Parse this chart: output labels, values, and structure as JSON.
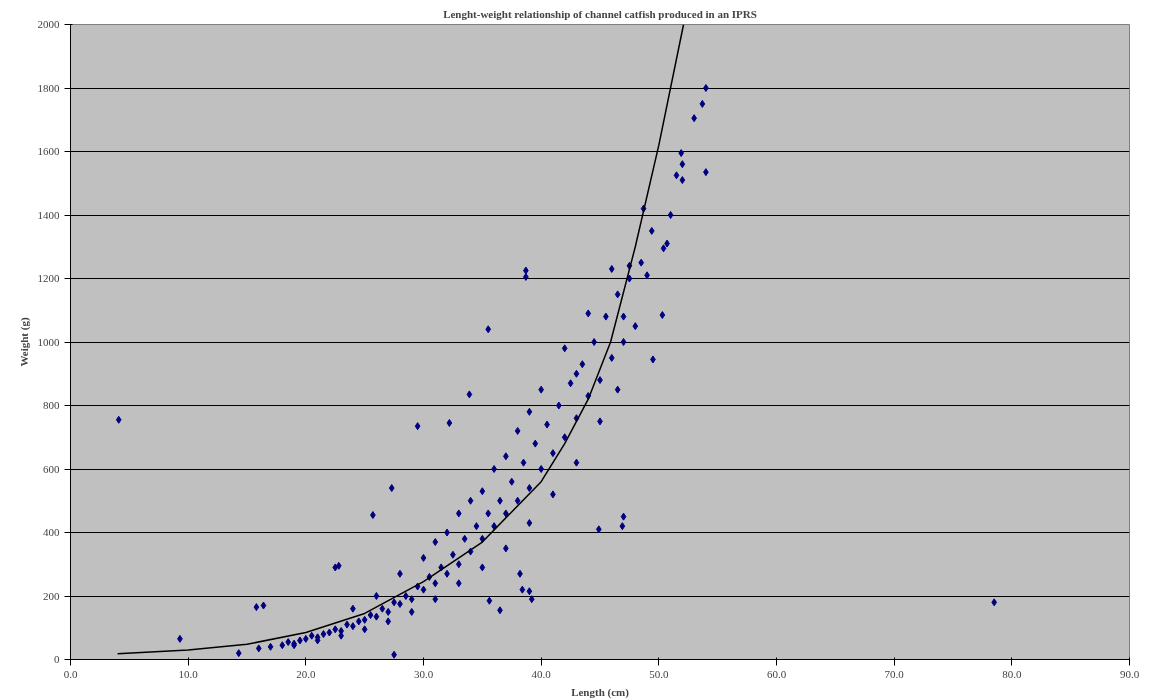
{
  "chart_data": {
    "type": "scatter",
    "title": "Lenght-weight relationship of channel catfish produced in an IPRS",
    "xlabel": "Length (cm)",
    "ylabel": "Weight (g)",
    "xlim": [
      0,
      90
    ],
    "ylim": [
      0,
      2000
    ],
    "xticks": [
      {
        "value": 0,
        "label": "0.0"
      },
      {
        "value": 10,
        "label": "10.0"
      },
      {
        "value": 20,
        "label": "20.0"
      },
      {
        "value": 30,
        "label": "30.0"
      },
      {
        "value": 40,
        "label": "40.0"
      },
      {
        "value": 50,
        "label": "50.0"
      },
      {
        "value": 60,
        "label": "60.0"
      },
      {
        "value": 70,
        "label": "70.0"
      },
      {
        "value": 80,
        "label": "80.0"
      },
      {
        "value": 90,
        "label": "90.0"
      }
    ],
    "yticks": [
      0,
      200,
      400,
      600,
      800,
      1000,
      1200,
      1400,
      1600,
      1800,
      2000
    ],
    "grid": "y",
    "marker": "diamond",
    "series": [
      {
        "color": "#000080",
        "x": [
          4.1,
          9.3,
          14.3,
          15.8,
          16.4,
          22.5,
          22.8,
          25.7,
          27.3,
          27.5,
          29.5,
          32.2,
          33.9,
          35.5,
          38.7,
          38.7,
          36.5,
          35.6,
          38.2,
          38.4,
          39.0,
          39.2,
          44.9,
          47.0,
          46.9,
          49.5,
          78.5,
          54,
          53.7,
          53,
          54,
          51.9,
          52,
          52,
          51.5,
          51,
          50.7,
          50.4,
          48.7,
          49.4,
          50.3,
          16,
          17,
          18,
          18.5,
          19,
          19.5,
          20,
          20.5,
          21,
          21.5,
          22,
          22.5,
          23,
          23.5,
          24,
          24.5,
          25,
          25.5,
          26,
          26.5,
          27,
          27.5,
          28,
          28.5,
          29,
          29.5,
          30,
          30.5,
          31,
          31.5,
          32,
          32.5,
          33,
          33.5,
          34,
          34.5,
          35,
          35.5,
          36,
          36.5,
          37,
          37.5,
          38,
          38.5,
          39,
          39.5,
          40,
          40.5,
          41,
          41.5,
          42,
          42.5,
          43,
          43.5,
          44,
          44.5,
          45,
          45.5,
          46,
          46.5,
          47,
          47.5,
          48,
          46.5,
          45,
          43,
          41,
          39,
          37,
          35,
          33,
          31,
          29,
          27,
          25,
          23,
          21,
          19,
          30,
          32,
          34,
          36,
          38,
          40,
          42,
          44,
          46,
          47.5,
          48.5,
          49,
          47,
          43,
          39,
          37,
          35,
          33,
          31,
          28,
          26,
          24
        ],
        "values": [
          755,
          65,
          20,
          165,
          170,
          290,
          295,
          455,
          540,
          15,
          735,
          745,
          835,
          1040,
          1225,
          1205,
          155,
          185,
          270,
          220,
          215,
          190,
          410,
          450,
          420,
          945,
          180,
          1800,
          1750,
          1705,
          1535,
          1595,
          1560,
          1510,
          1525,
          1400,
          1310,
          1295,
          1420,
          1350,
          1085,
          35,
          40,
          45,
          55,
          50,
          60,
          65,
          75,
          70,
          80,
          85,
          95,
          90,
          110,
          105,
          120,
          125,
          140,
          135,
          160,
          150,
          180,
          175,
          200,
          190,
          230,
          220,
          260,
          240,
          290,
          270,
          330,
          300,
          380,
          340,
          420,
          380,
          460,
          420,
          500,
          460,
          560,
          500,
          620,
          540,
          680,
          600,
          740,
          650,
          800,
          700,
          870,
          760,
          930,
          830,
          1000,
          880,
          1080,
          950,
          1150,
          1000,
          1200,
          1050,
          850,
          750,
          620,
          520,
          430,
          350,
          290,
          240,
          190,
          150,
          120,
          95,
          75,
          60,
          45,
          320,
          400,
          500,
          600,
          720,
          850,
          980,
          1090,
          1230,
          1240,
          1250,
          1210,
          1080,
          900,
          780,
          640,
          530,
          460,
          370,
          270,
          200,
          160
        ]
      },
      {
        "type": "line",
        "color": "#000000",
        "marker": "none",
        "x": [
          4,
          10,
          15,
          20,
          25,
          30,
          35,
          40,
          42,
          44,
          45.9,
          48,
          50,
          52.1
        ],
        "values": [
          18,
          30,
          48,
          85,
          145,
          245,
          370,
          560,
          680,
          820,
          1000,
          1300,
          1620,
          2000
        ]
      }
    ]
  }
}
